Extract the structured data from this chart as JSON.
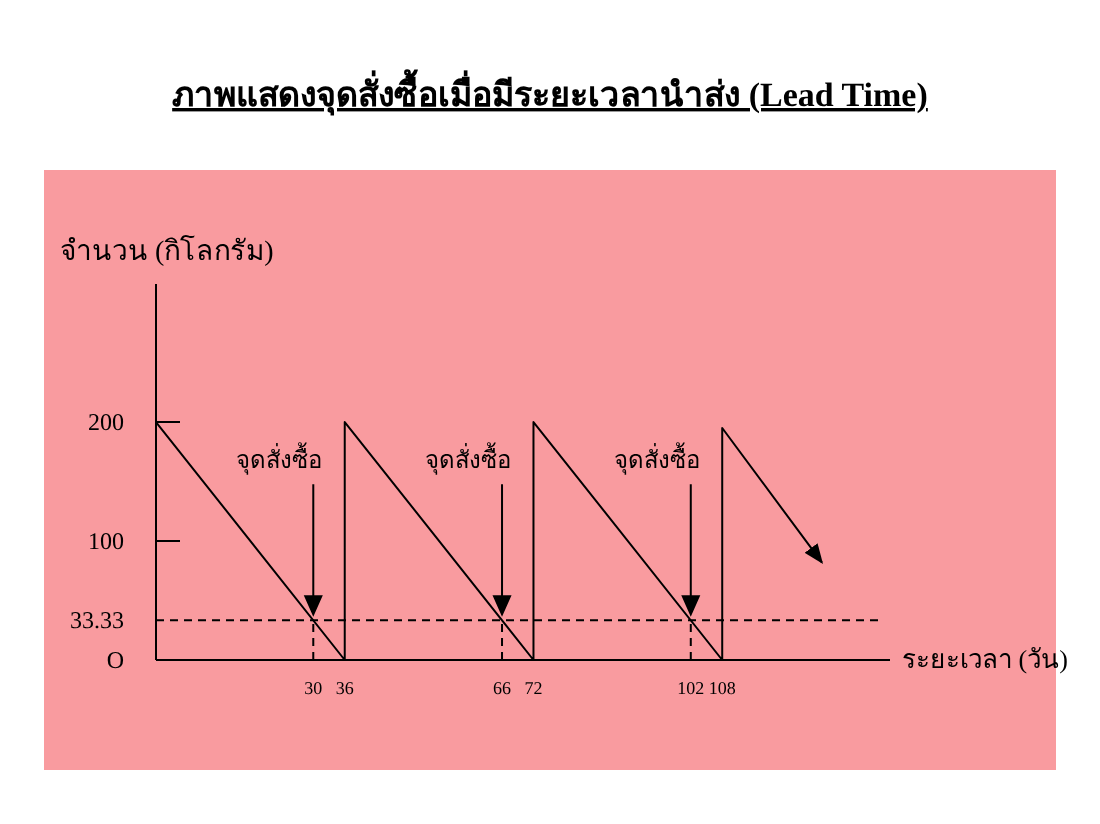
{
  "chart_data": {
    "type": "line",
    "title": "**ภาพแสดงจุดสั่งซื้อเมื่อมีระยะเวลานำส่ง (Lead Time)**",
    "xlabel": "ระยะเวลา (วัน)",
    "ylabel": "จำนวน (กิโลกรัม)",
    "ylim": [
      0,
      316
    ],
    "xticks": [
      30,
      36,
      66,
      72,
      102,
      108
    ],
    "yticks": [
      {
        "value": 0,
        "label": "O"
      },
      33.33,
      100,
      200
    ],
    "series": [
      {
        "color": "#000000",
        "x": [
          0,
          36,
          36,
          72,
          72,
          108,
          108,
          127
        ],
        "values": [
          200,
          0,
          200,
          0,
          200,
          0,
          195,
          82
        ]
      },
      {
        "color": "#000000",
        "line_style": "dashed",
        "x": [
          0,
          138
        ],
        "values": [
          33.33,
          33.33
        ]
      },
      {
        "color": "#000000",
        "line_style": "dashed",
        "x": [
          30,
          30
        ],
        "values": [
          0,
          33.33
        ]
      },
      {
        "color": "#000000",
        "line_style": "dashed",
        "x": [
          66,
          66
        ],
        "values": [
          0,
          33.33
        ]
      },
      {
        "color": "#000000",
        "line_style": "dashed",
        "x": [
          102,
          102
        ],
        "values": [
          0,
          33.33
        ]
      }
    ],
    "annotations": [
      "จุดสั่งซื้อ",
      "จุดสั่งซื้อ",
      "จุดสั่งซื้อ"
    ],
    "xlim": [
      0,
      140
    ],
    "grid": false
  }
}
